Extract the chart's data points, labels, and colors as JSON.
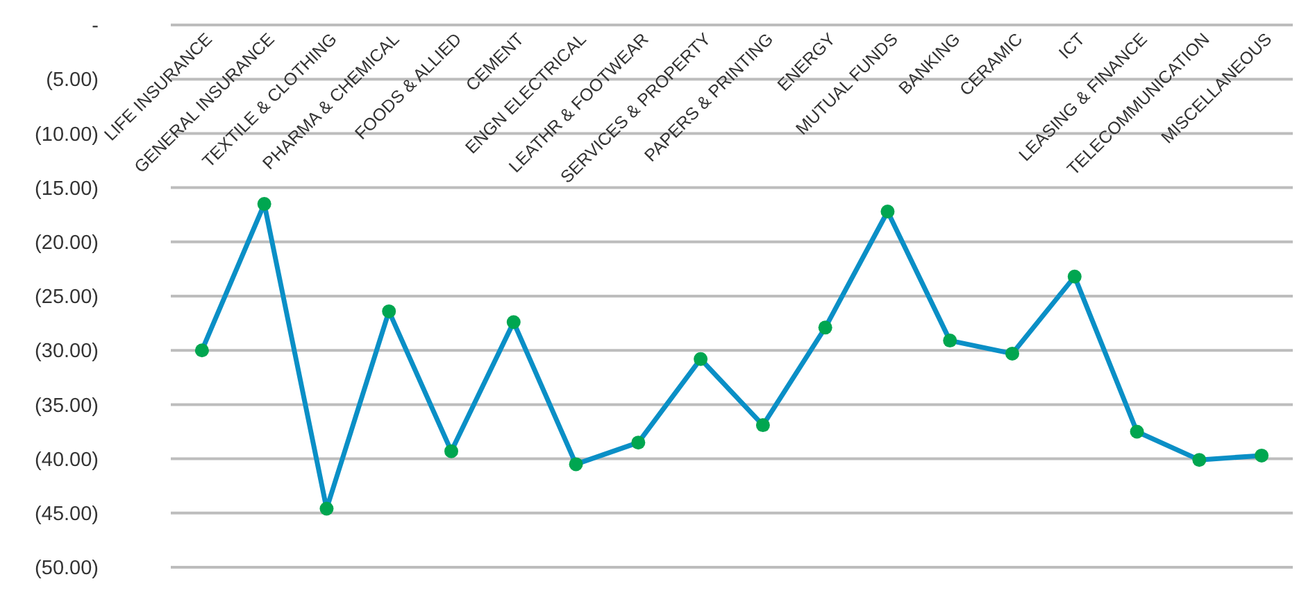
{
  "chart_data": {
    "type": "line",
    "categories": [
      "LIFE INSURANCE",
      "GENERAL INSURANCE",
      "TEXTILE & CLOTHING",
      "PHARMA & CHEMICAL",
      "FOODS & ALLIED",
      "CEMENT",
      "ENGN ELECTRICAL",
      "LEATHR & FOOTWEAR",
      "SERVICES & PROPERTY",
      "PAPERS & PRINTING",
      "ENERGY",
      "MUTUAL FUNDS",
      "BANKING",
      "CERAMIC",
      "ICT",
      "LEASING & FINANCE",
      "TELECOMMUNICATION",
      "MISCELLANEOUS"
    ],
    "series": [
      {
        "color": "#0a8fc6",
        "marker": "none",
        "values": [
          -30.0,
          -16.5,
          -44.6,
          -26.4,
          -39.3,
          -27.4,
          -40.5,
          -38.5,
          -30.8,
          -36.9,
          -27.9,
          -17.2,
          -29.1,
          -30.3,
          -23.2,
          -37.5,
          -40.1,
          -39.7
        ]
      },
      {
        "type": "scatter",
        "color": "#00a650",
        "x": [
          "LIFE INSURANCE",
          "GENERAL INSURANCE",
          "TEXTILE & CLOTHING",
          "PHARMA & CHEMICAL",
          "FOODS & ALLIED",
          "CEMENT",
          "ENGN ELECTRICAL",
          "LEATHR & FOOTWEAR",
          "SERVICES & PROPERTY",
          "PAPERS & PRINTING",
          "ENERGY",
          "MUTUAL FUNDS",
          "BANKING",
          "CERAMIC",
          "ICT",
          "LEASING & FINANCE",
          "TELECOMMUNICATION",
          "MISCELLANEOUS"
        ],
        "values": [
          -30.0,
          -16.5,
          -44.6,
          -26.4,
          -39.3,
          -27.4,
          -40.5,
          -38.5,
          -30.8,
          -36.9,
          -27.9,
          -17.2,
          -29.1,
          -30.3,
          -23.2,
          -37.5,
          -40.1,
          -39.7
        ]
      }
    ],
    "ylim": [
      -50,
      0
    ],
    "yticks": [
      {
        "value": 0,
        "label": "-"
      },
      {
        "value": -5,
        "label": "(5.00)"
      },
      {
        "value": -10,
        "label": "(10.00)"
      },
      {
        "value": -15,
        "label": "(15.00)"
      },
      {
        "value": -20,
        "label": "(20.00)"
      },
      {
        "value": -25,
        "label": "(25.00)"
      },
      {
        "value": -30,
        "label": "(30.00)"
      },
      {
        "value": -35,
        "label": "(35.00)"
      },
      {
        "value": -40,
        "label": "(40.00)"
      },
      {
        "value": -45,
        "label": "(45.00)"
      },
      {
        "value": -50,
        "label": "(50.00)"
      }
    ],
    "grid": "y",
    "marker": "circle",
    "line_style": "solid"
  }
}
